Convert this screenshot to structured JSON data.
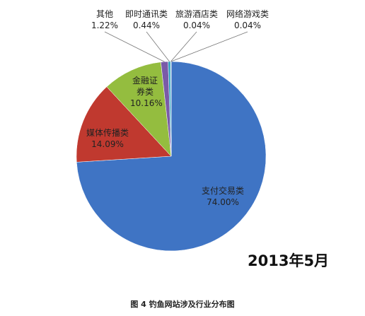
{
  "chart_data": {
    "type": "pie",
    "title": "2013年5月",
    "caption": "图 4 钓鱼网站涉及行业分布图",
    "categories": [
      "支付交易类",
      "媒体传播类",
      "金融证券类",
      "其他",
      "即时通讯类",
      "旅游酒店类",
      "网络游戏类"
    ],
    "values": [
      74,
      14.09,
      10.16,
      1.22,
      0.44,
      0.04,
      0.04
    ],
    "value_labels": [
      "74.00%",
      "14.09%",
      "10.16%",
      "1.22%",
      "0.44%",
      "0.04%",
      "0.04%"
    ],
    "colors": [
      "#3f74c4",
      "#c0392f",
      "#94bd3f",
      "#7a5aa8",
      "#3aa7c4",
      "#f0902e",
      "#2f5f8a"
    ]
  }
}
